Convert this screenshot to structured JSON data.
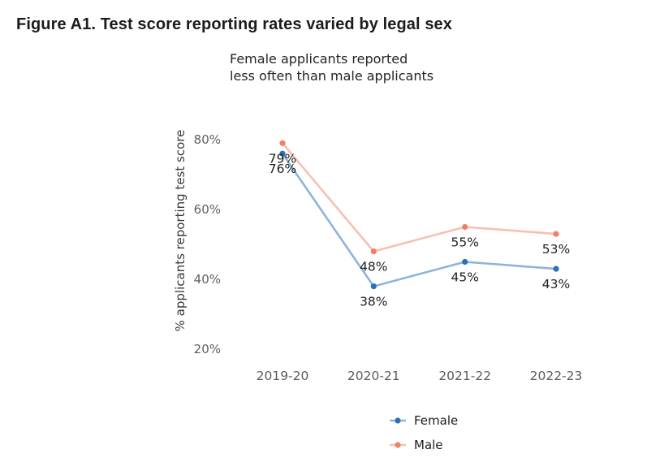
{
  "figure": {
    "title": "Figure A1. Test score reporting rates varied by legal sex"
  },
  "chart_data": {
    "type": "line",
    "title": "Female applicants reported less often than male applicants",
    "title_lines": [
      "Female applicants reported",
      "less often than male applicants"
    ],
    "xlabel": "",
    "ylabel": "% applicants reporting test score",
    "categories": [
      "2019-20",
      "2020-21",
      "2021-22",
      "2022-23"
    ],
    "series": [
      {
        "name": "Female",
        "values": [
          76,
          38,
          45,
          43
        ],
        "point_labels": [
          "76%",
          "38%",
          "45%",
          "43%"
        ],
        "marker_color": "#2b70b8",
        "line_color": "#8db4dd"
      },
      {
        "name": "Male",
        "values": [
          79,
          48,
          55,
          53
        ],
        "point_labels": [
          "79%",
          "48%",
          "55%",
          "53%"
        ],
        "marker_color": "#ef7f66",
        "line_color": "#f6c0b2"
      }
    ],
    "yticks": [
      80,
      60,
      40,
      20
    ],
    "ytick_labels": [
      "80%",
      "60%",
      "40%",
      "20%"
    ],
    "ylim": [
      15,
      85
    ],
    "grid": "off",
    "axis_lines": "off",
    "legend_position": "bottom",
    "marker": "circle"
  }
}
